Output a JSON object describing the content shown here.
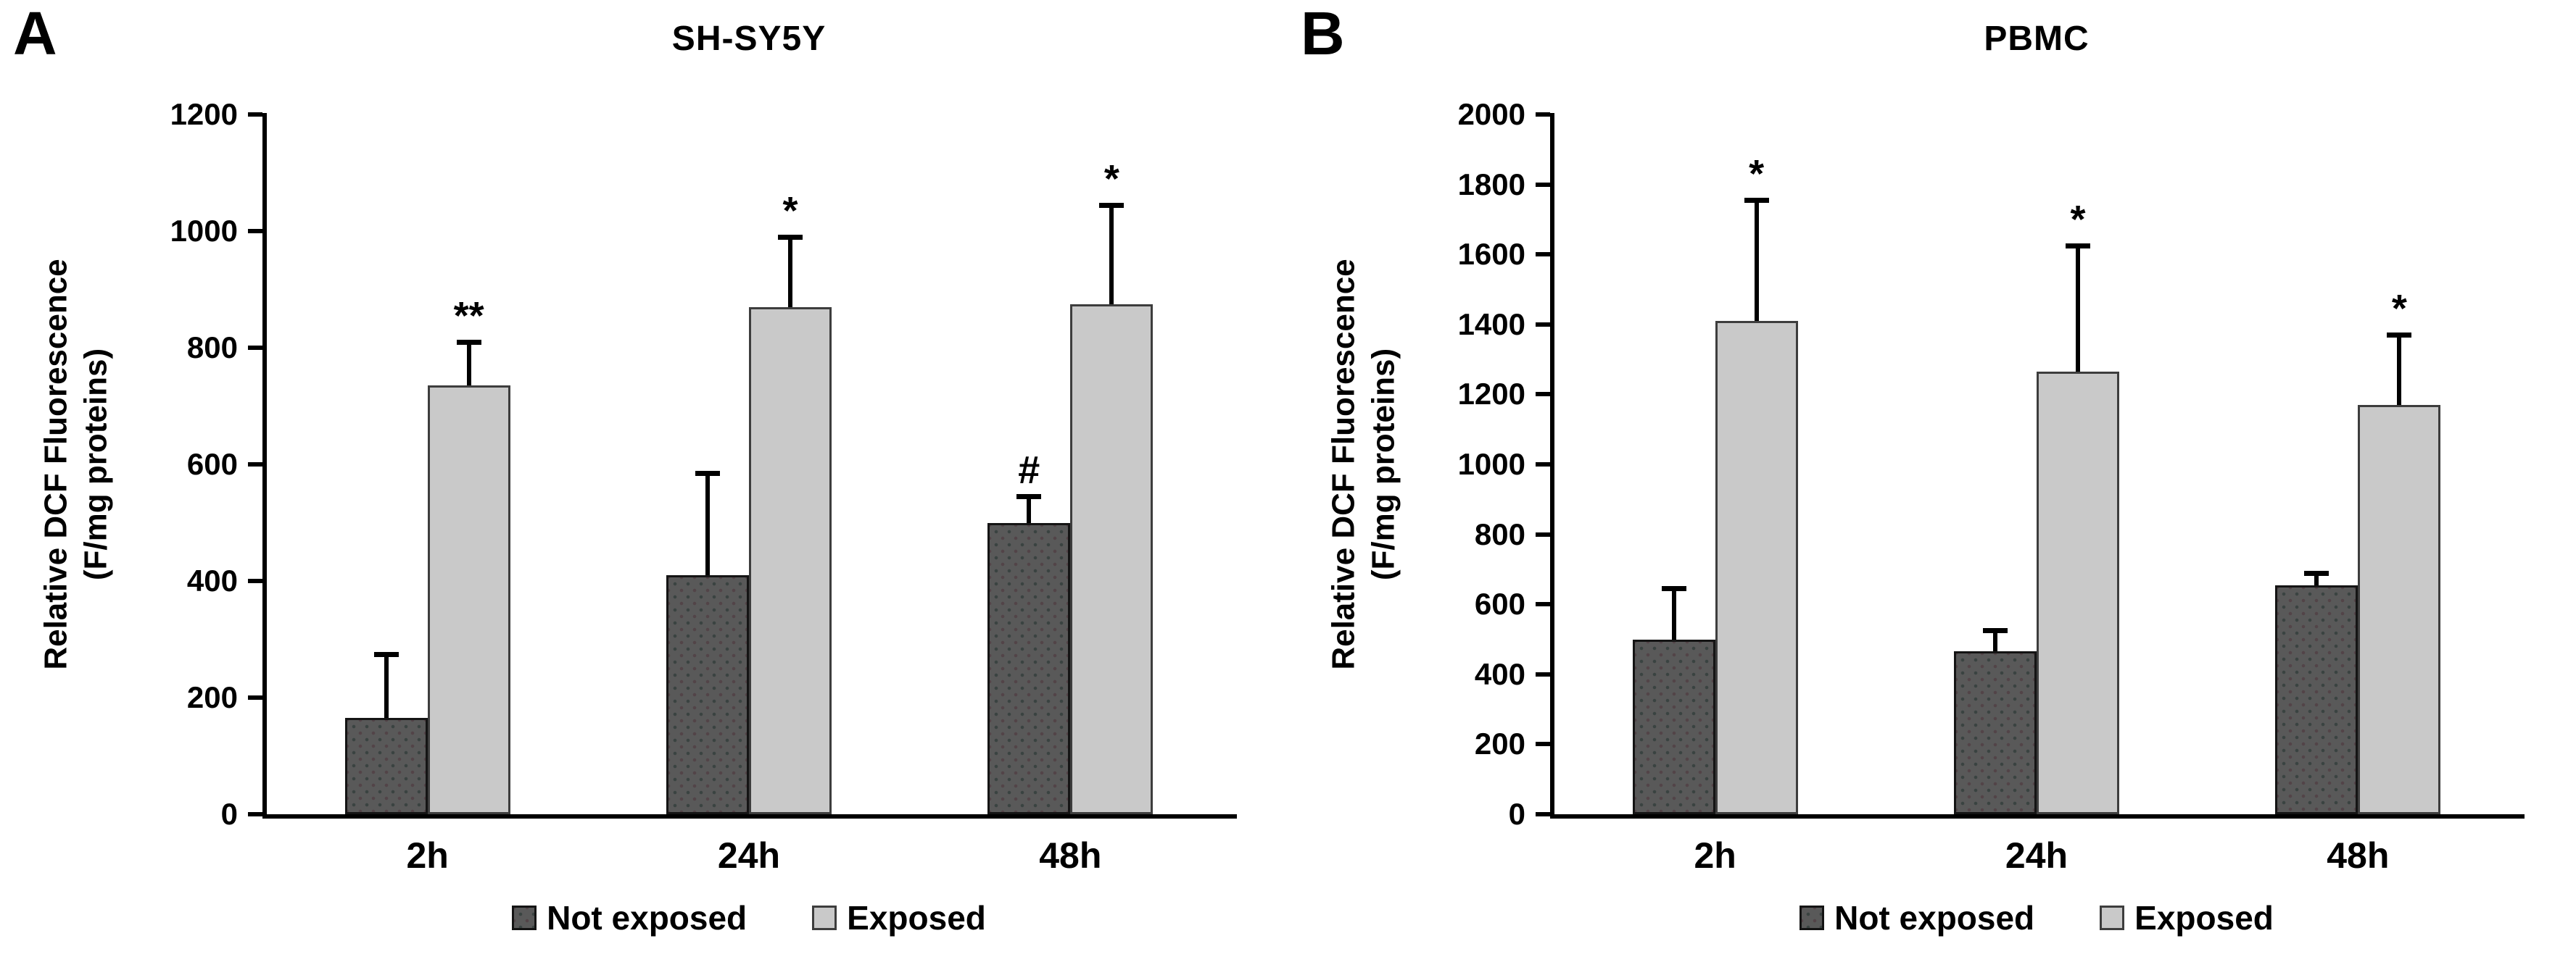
{
  "chart_data": [
    {
      "type": "bar",
      "panel_label": "A",
      "title": "SH-SY5Y",
      "categories": [
        "2h",
        "24h",
        "48h"
      ],
      "series": [
        {
          "name": "Not exposed",
          "color": "#595959",
          "values": [
            165,
            410,
            500
          ],
          "error_plus": [
            110,
            175,
            45
          ],
          "significance": [
            "",
            "",
            "#"
          ]
        },
        {
          "name": "Exposed",
          "color": "#c9c9c9",
          "values": [
            735,
            870,
            875
          ],
          "error_plus": [
            75,
            120,
            170
          ],
          "significance": [
            "**",
            "*",
            "*"
          ]
        }
      ],
      "ylabel": [
        "Relative DCF Fluorescence",
        "(F/mg proteins)"
      ],
      "xlabel": "",
      "ylim": [
        0,
        1200
      ],
      "ytick_step": 200,
      "grid": false,
      "legend_position": "bottom"
    },
    {
      "type": "bar",
      "panel_label": "B",
      "title": "PBMC",
      "categories": [
        "2h",
        "24h",
        "48h"
      ],
      "series": [
        {
          "name": "Not exposed",
          "color": "#595959",
          "values": [
            500,
            465,
            655
          ],
          "error_plus": [
            145,
            60,
            35
          ],
          "significance": [
            "",
            "",
            ""
          ]
        },
        {
          "name": "Exposed",
          "color": "#c9c9c9",
          "values": [
            1410,
            1265,
            1170
          ],
          "error_plus": [
            345,
            360,
            200
          ],
          "significance": [
            "*",
            "*",
            "*"
          ]
        }
      ],
      "ylabel": [
        "Relative DCF Fluorescence",
        "(F/mg proteins)"
      ],
      "xlabel": "",
      "ylim": [
        0,
        2000
      ],
      "ytick_step": 200,
      "grid": false,
      "legend_position": "bottom"
    }
  ]
}
